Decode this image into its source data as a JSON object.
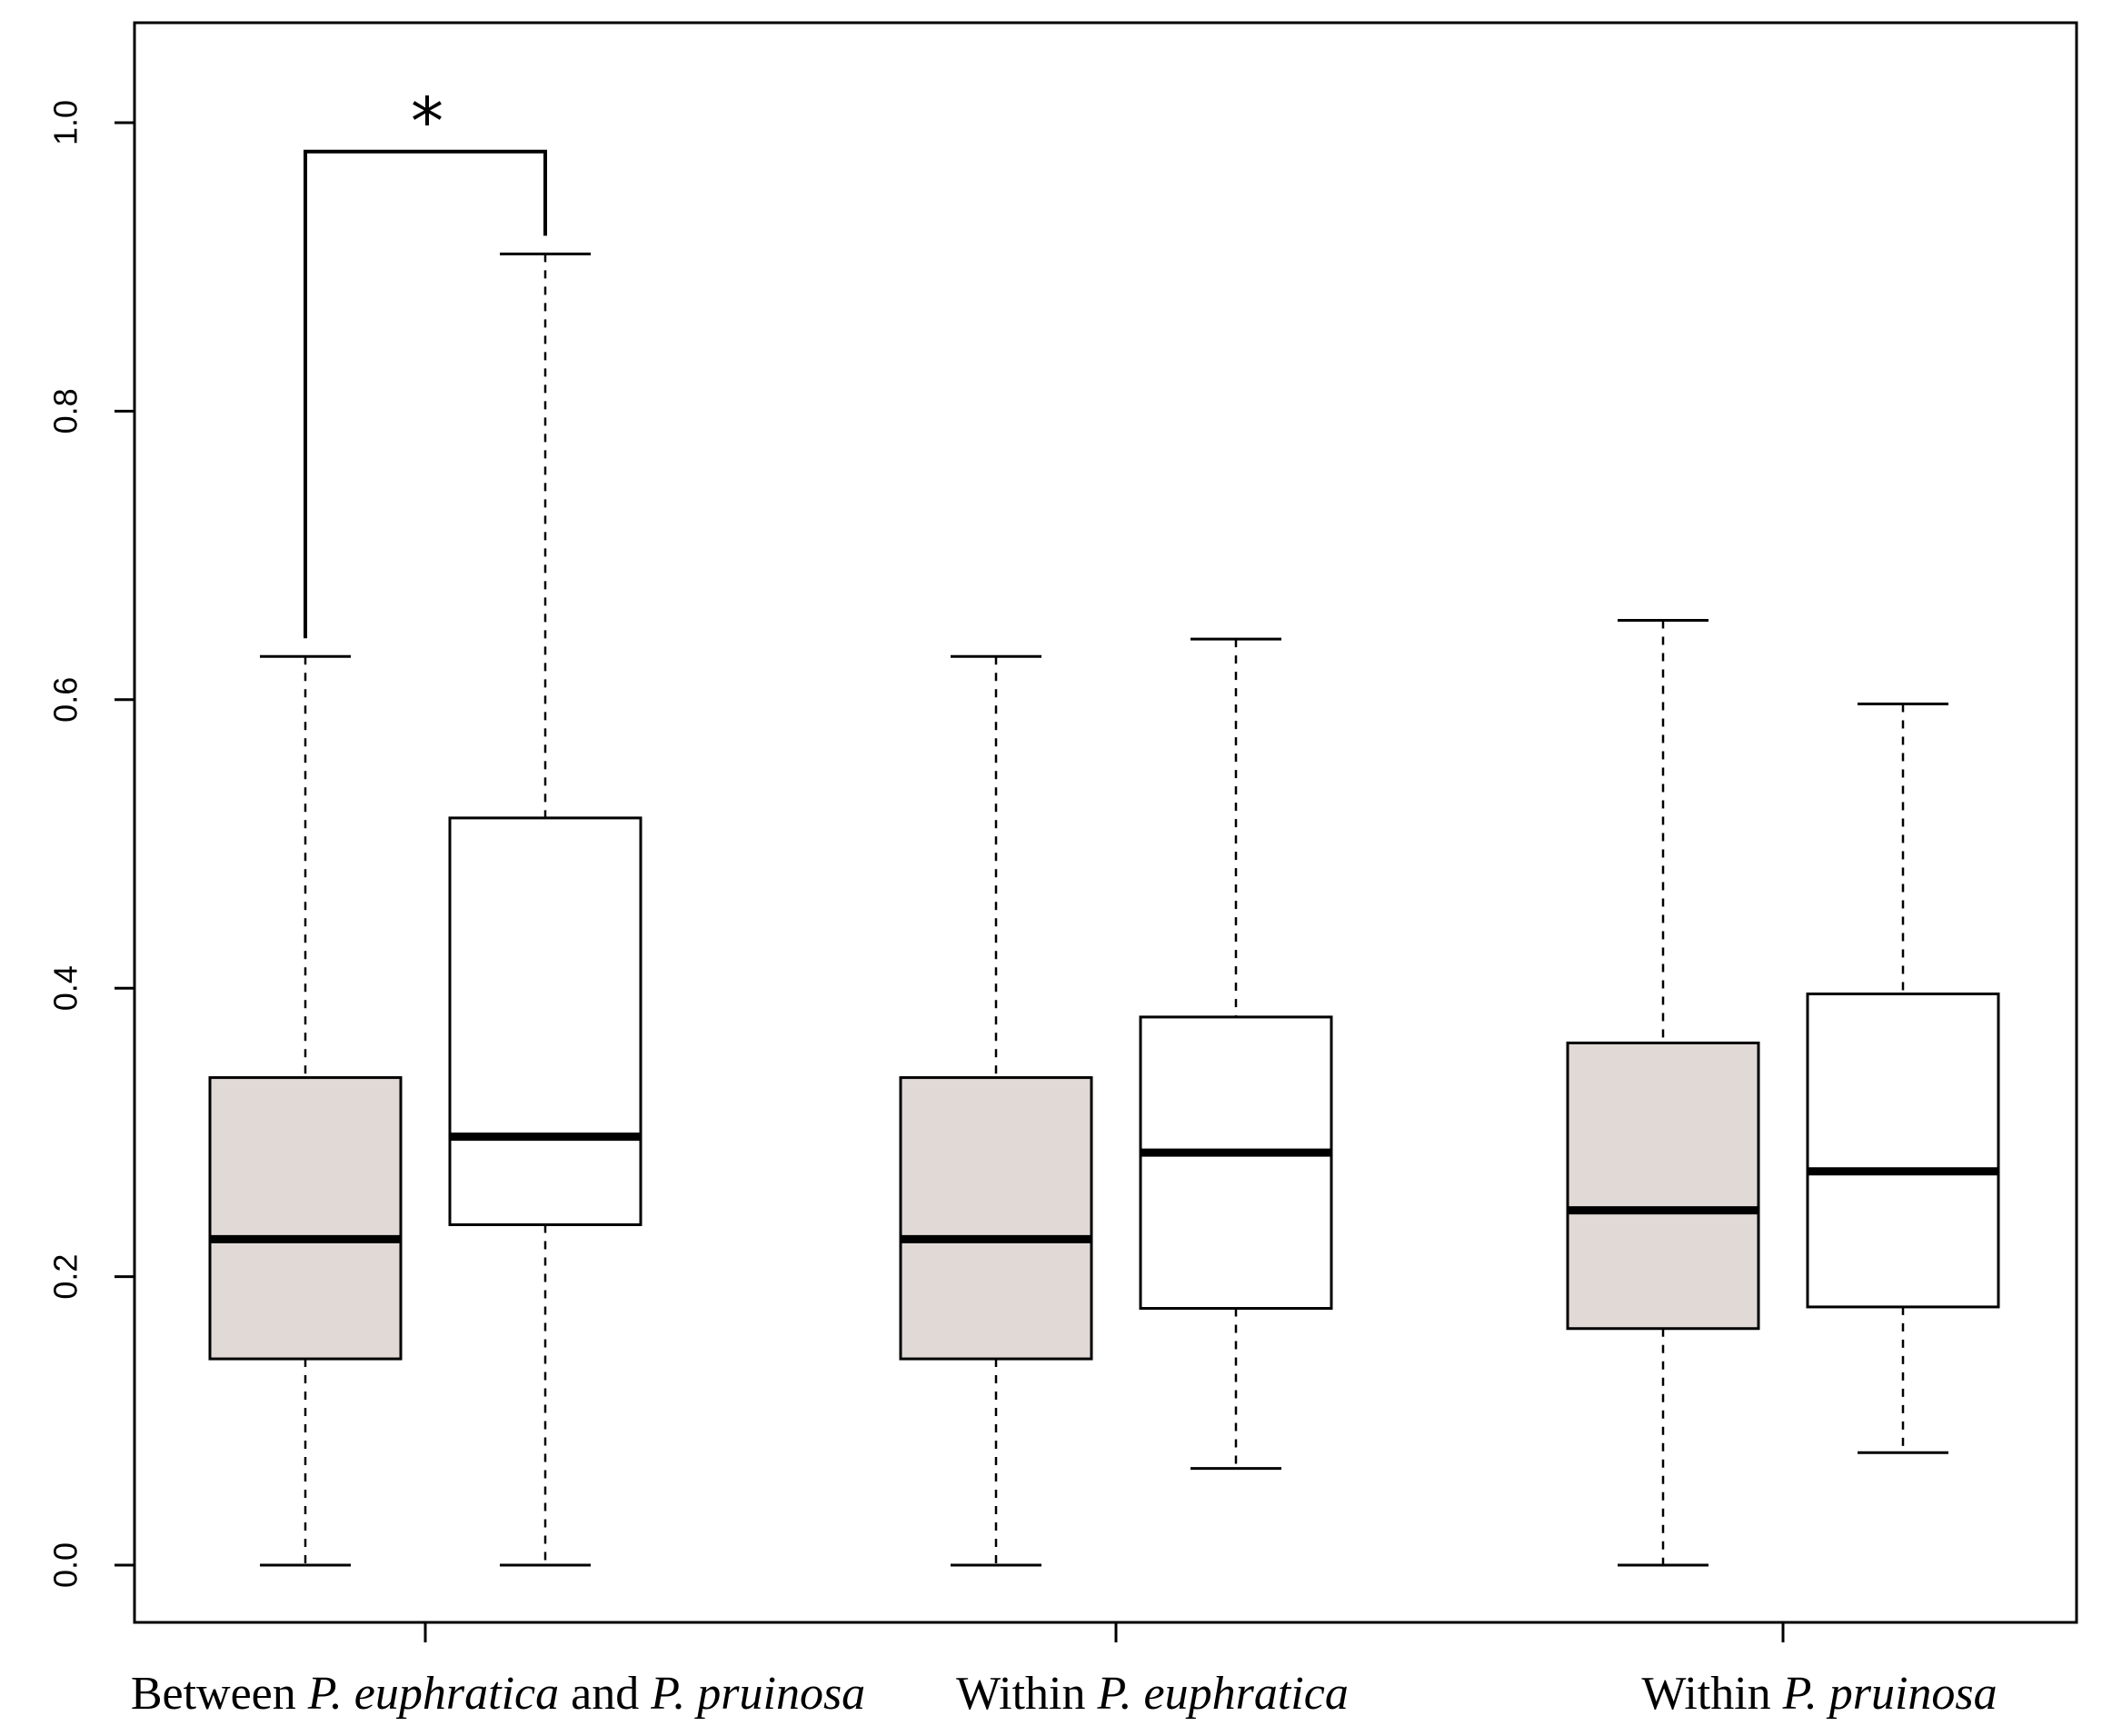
{
  "chart_data": {
    "type": "box",
    "title": "",
    "xlabel": "",
    "ylabel": "",
    "ylim": [
      -0.07,
      1.07
    ],
    "yticks": [
      0.0,
      0.2,
      0.4,
      0.6,
      0.8,
      1.0
    ],
    "ytick_labels": [
      "0.0",
      "0.2",
      "0.4",
      "0.6",
      "0.8",
      "1.0"
    ],
    "grid": false,
    "legend": null,
    "colors": {
      "shaded_box": "#e0d9d6",
      "open_box": "#ffffff",
      "stroke": "#000000"
    },
    "groups": [
      {
        "label_parts": [
          {
            "text": "Between ",
            "italic": false
          },
          {
            "text": "P. euphratica",
            "italic": true
          },
          {
            "text": " and ",
            "italic": false
          },
          {
            "text": "P. pruinosa",
            "italic": true
          }
        ],
        "boxes": [
          {
            "fill": "shaded",
            "min": 0.0,
            "q1": 0.143,
            "median": 0.226,
            "q3": 0.338,
            "max": 0.63
          },
          {
            "fill": "open",
            "min": 0.0,
            "q1": 0.236,
            "median": 0.297,
            "q3": 0.518,
            "max": 0.909
          }
        ]
      },
      {
        "label_parts": [
          {
            "text": "Within ",
            "italic": false
          },
          {
            "text": "P. euphratica",
            "italic": true
          }
        ],
        "boxes": [
          {
            "fill": "shaded",
            "min": 0.0,
            "q1": 0.143,
            "median": 0.226,
            "q3": 0.338,
            "max": 0.63
          },
          {
            "fill": "open",
            "min": 0.067,
            "q1": 0.178,
            "median": 0.286,
            "q3": 0.38,
            "max": 0.642
          }
        ]
      },
      {
        "label_parts": [
          {
            "text": "Within ",
            "italic": false
          },
          {
            "text": "P. pruinosa",
            "italic": true
          }
        ],
        "boxes": [
          {
            "fill": "shaded",
            "min": 0.0,
            "q1": 0.164,
            "median": 0.246,
            "q3": 0.362,
            "max": 0.655
          },
          {
            "fill": "open",
            "min": 0.078,
            "q1": 0.179,
            "median": 0.273,
            "q3": 0.396,
            "max": 0.597
          }
        ]
      }
    ],
    "significance": {
      "group": 0,
      "bracket_y": 0.98,
      "label": "*"
    }
  }
}
